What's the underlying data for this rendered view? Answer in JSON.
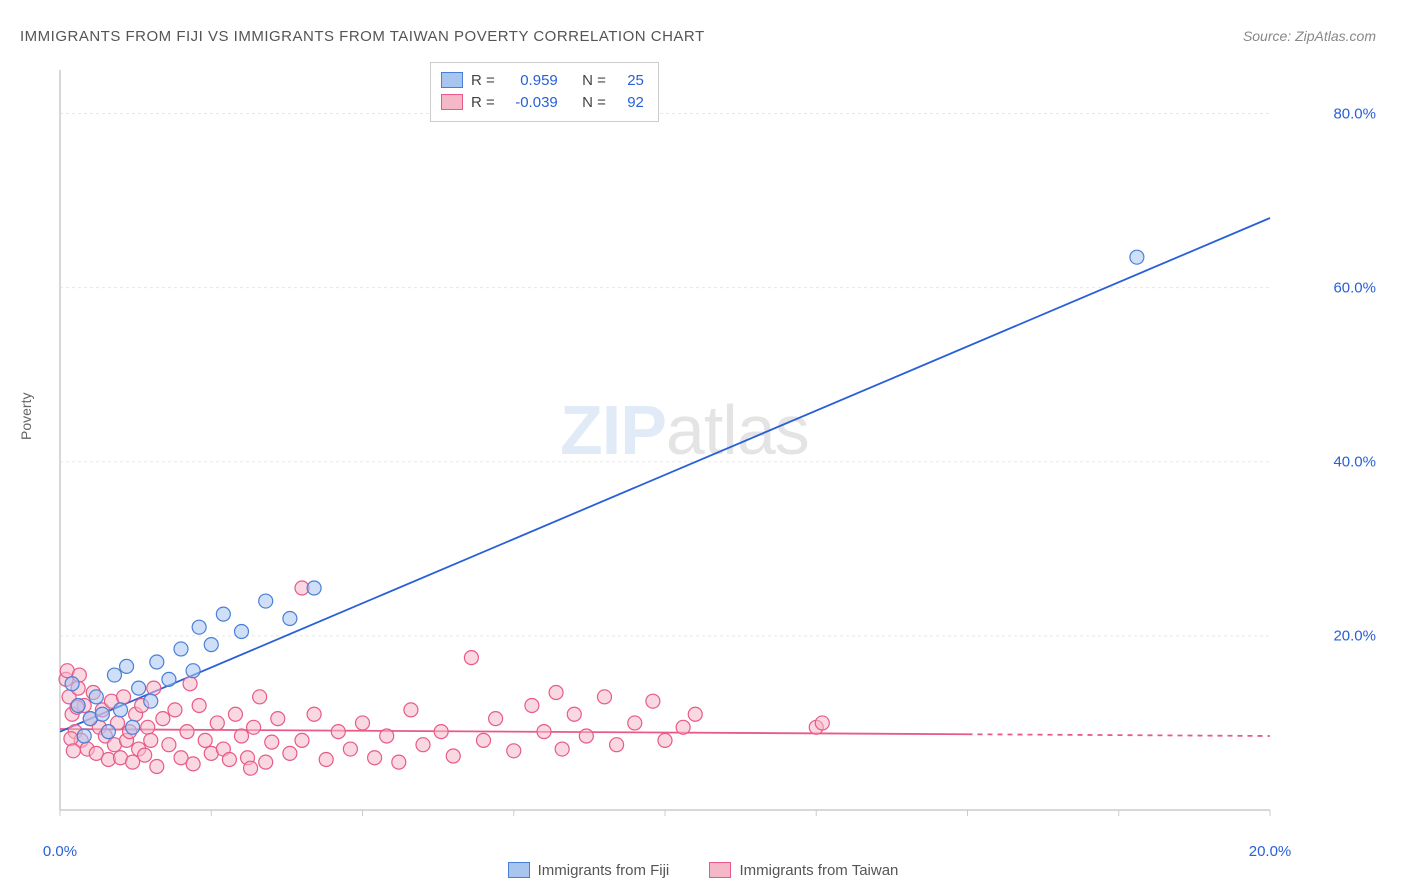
{
  "title": "IMMIGRANTS FROM FIJI VS IMMIGRANTS FROM TAIWAN POVERTY CORRELATION CHART",
  "source": "Source: ZipAtlas.com",
  "ylabel": "Poverty",
  "watermark_zip": "ZIP",
  "watermark_atlas": "atlas",
  "chart": {
    "type": "scatter",
    "xlim": [
      0,
      20
    ],
    "ylim": [
      0,
      85
    ],
    "x_ticks": [
      0,
      20
    ],
    "x_tick_labels": [
      "0.0%",
      "20.0%"
    ],
    "y_ticks": [
      20,
      40,
      60,
      80
    ],
    "y_tick_labels": [
      "20.0%",
      "40.0%",
      "60.0%",
      "80.0%"
    ],
    "background_color": "#ffffff",
    "grid_color": "#e8e8e8",
    "axis_color": "#cccccc",
    "marker_radius": 7,
    "marker_stroke_width": 1.2,
    "line_width": 1.8,
    "series": [
      {
        "name": "Immigrants from Fiji",
        "fill": "#a8c5f0",
        "stroke": "#4a7fd8",
        "line_color": "#2860d8",
        "R": "0.959",
        "N": "25",
        "regression": {
          "x1": 0,
          "y1": 9,
          "x2": 20,
          "y2": 68
        },
        "points": [
          [
            0.2,
            14.5
          ],
          [
            0.3,
            12
          ],
          [
            0.5,
            10.5
          ],
          [
            0.6,
            13
          ],
          [
            0.8,
            9
          ],
          [
            0.9,
            15.5
          ],
          [
            1.0,
            11.5
          ],
          [
            1.1,
            16.5
          ],
          [
            1.3,
            14
          ],
          [
            1.5,
            12.5
          ],
          [
            1.6,
            17
          ],
          [
            1.8,
            15
          ],
          [
            2.0,
            18.5
          ],
          [
            2.2,
            16
          ],
          [
            2.3,
            21
          ],
          [
            2.5,
            19
          ],
          [
            2.7,
            22.5
          ],
          [
            3.0,
            20.5
          ],
          [
            3.4,
            24
          ],
          [
            3.8,
            22
          ],
          [
            4.2,
            25.5
          ],
          [
            0.4,
            8.5
          ],
          [
            0.7,
            11
          ],
          [
            1.2,
            9.5
          ],
          [
            17.8,
            63.5
          ]
        ]
      },
      {
        "name": "Immigrants from Taiwan",
        "fill": "#f5b8c8",
        "stroke": "#e85a88",
        "line_color": "#e85a88",
        "R": "-0.039",
        "N": "92",
        "regression": {
          "x1": 0,
          "y1": 9.3,
          "x2": 15,
          "y2": 8.7
        },
        "regression_dash": {
          "x1": 15,
          "y1": 8.7,
          "x2": 20,
          "y2": 8.5
        },
        "points": [
          [
            0.1,
            15
          ],
          [
            0.15,
            13
          ],
          [
            0.2,
            11
          ],
          [
            0.25,
            9
          ],
          [
            0.3,
            14
          ],
          [
            0.35,
            8
          ],
          [
            0.4,
            12
          ],
          [
            0.45,
            7
          ],
          [
            0.5,
            10.5
          ],
          [
            0.55,
            13.5
          ],
          [
            0.6,
            6.5
          ],
          [
            0.65,
            9.5
          ],
          [
            0.7,
            11.5
          ],
          [
            0.75,
            8.5
          ],
          [
            0.8,
            5.8
          ],
          [
            0.85,
            12.5
          ],
          [
            0.9,
            7.5
          ],
          [
            0.95,
            10
          ],
          [
            1.0,
            6
          ],
          [
            1.05,
            13
          ],
          [
            1.1,
            8
          ],
          [
            1.15,
            9
          ],
          [
            1.2,
            5.5
          ],
          [
            1.25,
            11
          ],
          [
            1.3,
            7
          ],
          [
            1.35,
            12
          ],
          [
            1.4,
            6.3
          ],
          [
            1.45,
            9.5
          ],
          [
            1.5,
            8
          ],
          [
            1.6,
            5
          ],
          [
            1.7,
            10.5
          ],
          [
            1.8,
            7.5
          ],
          [
            1.9,
            11.5
          ],
          [
            2.0,
            6
          ],
          [
            2.1,
            9
          ],
          [
            2.2,
            5.3
          ],
          [
            2.3,
            12
          ],
          [
            2.4,
            8
          ],
          [
            2.5,
            6.5
          ],
          [
            2.6,
            10
          ],
          [
            2.7,
            7
          ],
          [
            2.8,
            5.8
          ],
          [
            2.9,
            11
          ],
          [
            3.0,
            8.5
          ],
          [
            3.1,
            6
          ],
          [
            3.2,
            9.5
          ],
          [
            3.3,
            13
          ],
          [
            3.4,
            5.5
          ],
          [
            3.5,
            7.8
          ],
          [
            3.6,
            10.5
          ],
          [
            3.8,
            6.5
          ],
          [
            4.0,
            8
          ],
          [
            4.2,
            11
          ],
          [
            4.4,
            5.8
          ],
          [
            4.6,
            9
          ],
          [
            4.8,
            7
          ],
          [
            5.0,
            10
          ],
          [
            5.2,
            6
          ],
          [
            5.4,
            8.5
          ],
          [
            5.6,
            5.5
          ],
          [
            5.8,
            11.5
          ],
          [
            6.0,
            7.5
          ],
          [
            6.3,
            9
          ],
          [
            6.5,
            6.2
          ],
          [
            6.8,
            17.5
          ],
          [
            7.0,
            8
          ],
          [
            7.2,
            10.5
          ],
          [
            7.5,
            6.8
          ],
          [
            7.8,
            12
          ],
          [
            8.0,
            9
          ],
          [
            8.2,
            13.5
          ],
          [
            8.3,
            7
          ],
          [
            8.5,
            11
          ],
          [
            8.7,
            8.5
          ],
          [
            9.0,
            13
          ],
          [
            9.2,
            7.5
          ],
          [
            9.5,
            10
          ],
          [
            9.8,
            12.5
          ],
          [
            10.0,
            8
          ],
          [
            10.3,
            9.5
          ],
          [
            10.5,
            11
          ],
          [
            4.0,
            25.5
          ],
          [
            12.5,
            9.5
          ],
          [
            12.6,
            10
          ],
          [
            0.12,
            16
          ],
          [
            0.18,
            8.2
          ],
          [
            0.22,
            6.8
          ],
          [
            0.28,
            11.8
          ],
          [
            0.32,
            15.5
          ],
          [
            1.55,
            14
          ],
          [
            2.15,
            14.5
          ],
          [
            3.15,
            4.8
          ]
        ]
      }
    ]
  },
  "legend": {
    "border_color": "#cccccc",
    "text_color": "#444444",
    "value_color": "#2860d8",
    "r_label": "R =",
    "n_label": "N ="
  }
}
